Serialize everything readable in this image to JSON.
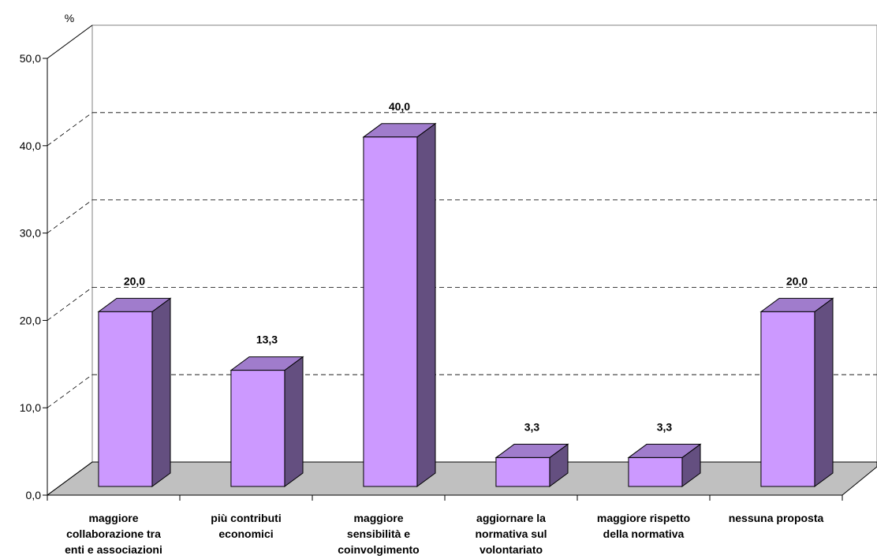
{
  "chart_data": {
    "type": "bar3d",
    "y_axis_label": "%",
    "categories": [
      "maggiore\ncollaborazione tra\nenti e associazioni",
      "più contributi\neconomici",
      "maggiore\nsensibilità e\ncoinvolgimento",
      "aggiornare la\nnormativa sul\nvolontariato",
      "maggiore rispetto\ndella normativa",
      "nessuna proposta"
    ],
    "values": [
      20.0,
      13.3,
      40.0,
      3.3,
      3.3,
      20.0
    ],
    "value_labels": [
      "20,0",
      "13,3",
      "40,0",
      "3,3",
      "3,3",
      "20,0"
    ],
    "color": "#cc99ff",
    "ylim": [
      0,
      50
    ],
    "yticks": [
      {
        "value": 0,
        "label": "0,0"
      },
      {
        "value": 10,
        "label": "10,0"
      },
      {
        "value": 20,
        "label": "20,0"
      },
      {
        "value": 30,
        "label": "30,0"
      },
      {
        "value": 40,
        "label": "40,0"
      },
      {
        "value": 50,
        "label": "50,0"
      }
    ],
    "grid": true
  }
}
